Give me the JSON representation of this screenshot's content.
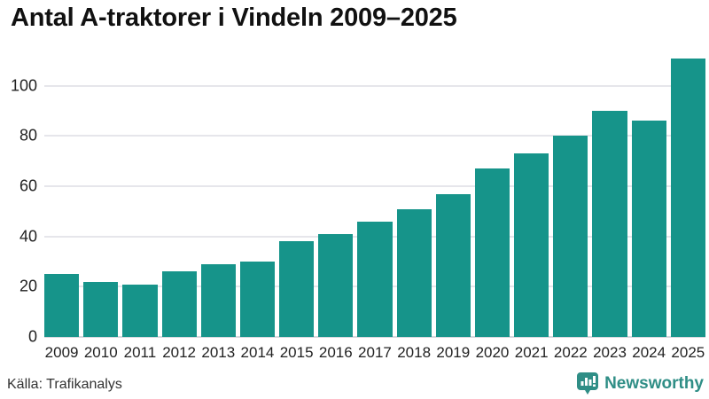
{
  "chart_data": {
    "type": "bar",
    "title": "Antal A-traktorer i Vindeln 2009–2025",
    "categories": [
      "2009",
      "2010",
      "2011",
      "2012",
      "2013",
      "2014",
      "2015",
      "2016",
      "2017",
      "2018",
      "2019",
      "2020",
      "2021",
      "2022",
      "2023",
      "2024",
      "2025"
    ],
    "values": [
      25,
      22,
      21,
      26,
      29,
      30,
      38,
      41,
      46,
      51,
      57,
      67,
      73,
      80,
      90,
      86,
      111
    ],
    "xlabel": "",
    "ylabel": "",
    "ylim": [
      0,
      113
    ],
    "yticks": [
      0,
      20,
      40,
      60,
      80,
      100
    ],
    "grid": true,
    "legend": false
  },
  "colors": {
    "bar": "#16948a",
    "gridline": "#e6e6eb",
    "zero_line": "#d8d8dd",
    "title_text": "#111111",
    "axis_text": "#222222",
    "brand_teal": "#2f8e86"
  },
  "footer": {
    "source": "Källa: Trafikanalys",
    "brand": "Newsworthy",
    "brand_icon": "bar-chart-speech-bubble-icon"
  }
}
